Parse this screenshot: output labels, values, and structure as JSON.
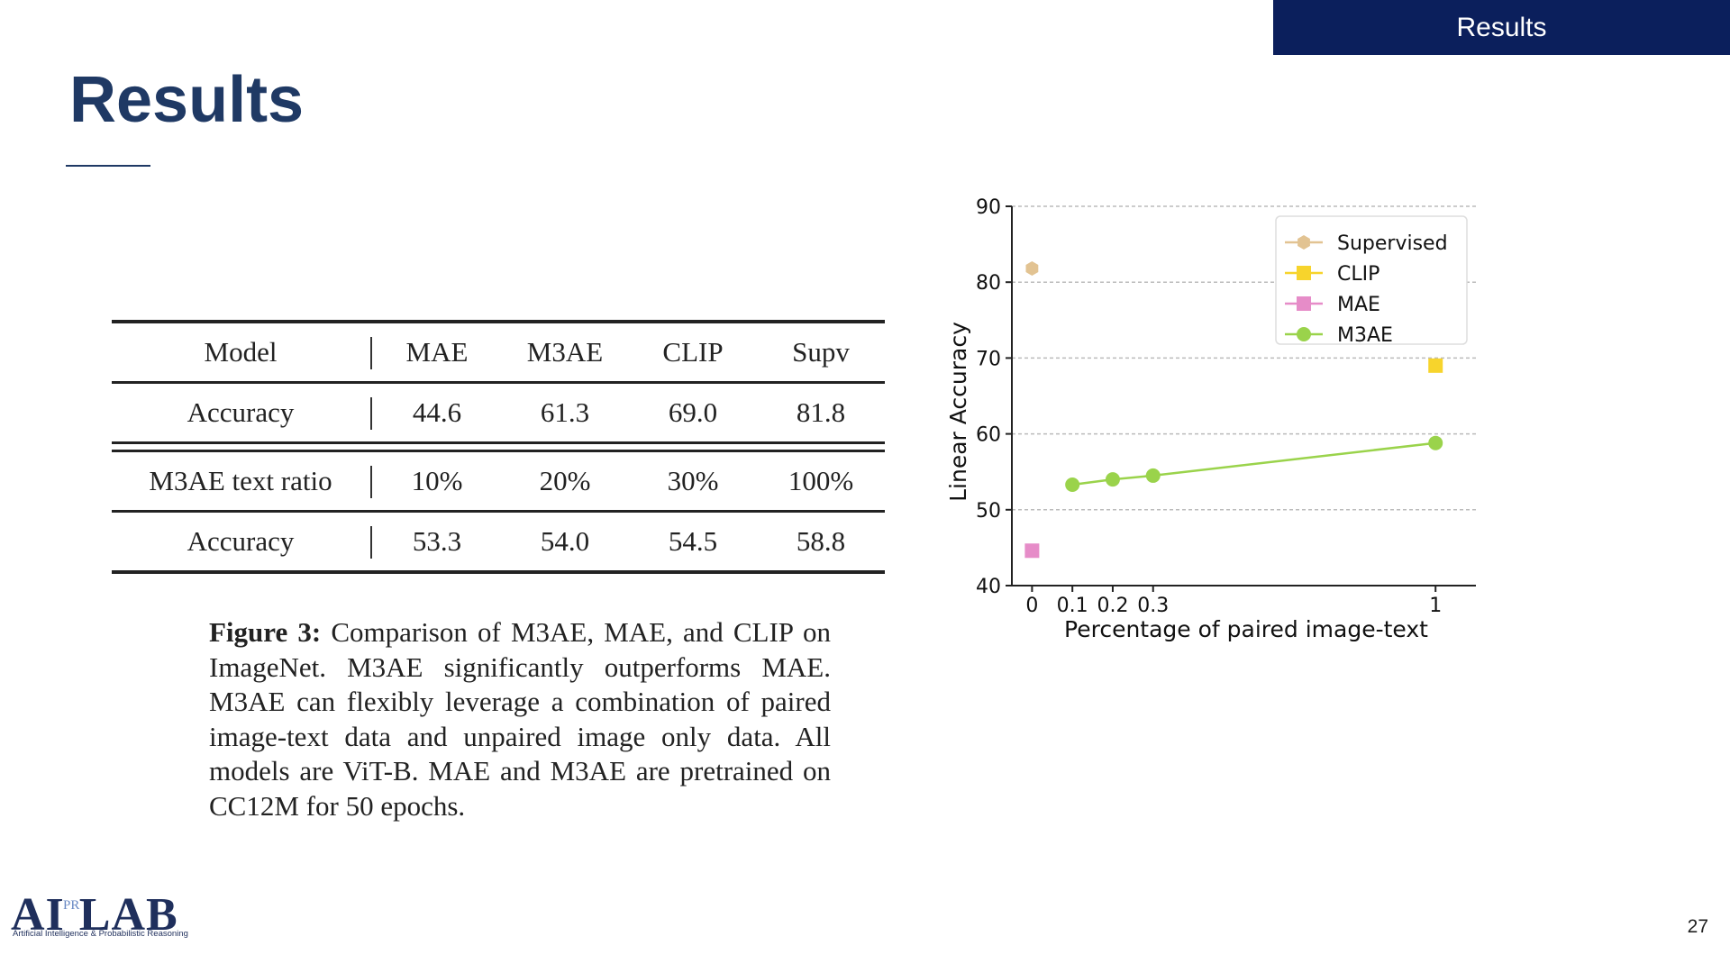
{
  "header": {
    "section_tag": "Results",
    "title": "Results"
  },
  "table": {
    "rows": [
      {
        "label": "Model",
        "cells": [
          "MAE",
          "M3AE",
          "CLIP",
          "Supv"
        ]
      },
      {
        "label": "Accuracy",
        "cells": [
          "44.6",
          "61.3",
          "69.0",
          "81.8"
        ]
      },
      {
        "label": "M3AE text ratio",
        "cells": [
          "10%",
          "20%",
          "30%",
          "100%"
        ]
      },
      {
        "label": "Accuracy",
        "cells": [
          "53.3",
          "54.0",
          "54.5",
          "58.8"
        ]
      }
    ]
  },
  "caption": {
    "lead": "Figure 3:",
    "text": " Comparison of M3AE, MAE, and CLIP on ImageNet.  M3AE significantly outperforms MAE. M3AE can flexibly leverage a combination of paired image-text data and unpaired image only data. All models are ViT-B. MAE and M3AE are pretrained on CC12M for 50 epochs."
  },
  "chart_data": {
    "type": "scatter",
    "title": "",
    "xlabel": "Percentage of paired image-text",
    "ylabel": "Linear Accuracy",
    "xlim": [
      -0.05,
      1.1
    ],
    "ylim": [
      40,
      90
    ],
    "xticks": [
      0,
      0.1,
      0.2,
      0.3,
      1
    ],
    "xtick_labels": [
      "0",
      "0.1",
      "0.2",
      "0.3",
      "1"
    ],
    "yticks": [
      40,
      50,
      60,
      70,
      80,
      90
    ],
    "grid": "horizontal-dashed",
    "legend_position": "top-right",
    "series": [
      {
        "name": "Supervised",
        "marker": "hexagon",
        "color": "#e2c392",
        "line": false,
        "x": [
          0
        ],
        "y": [
          81.8
        ]
      },
      {
        "name": "CLIP",
        "marker": "square",
        "color": "#f7d42c",
        "line": false,
        "x": [
          1
        ],
        "y": [
          69.0
        ]
      },
      {
        "name": "MAE",
        "marker": "square",
        "color": "#e68cc8",
        "line": false,
        "x": [
          0
        ],
        "y": [
          44.6
        ]
      },
      {
        "name": "M3AE",
        "marker": "circle",
        "color": "#9ad34b",
        "line": true,
        "x": [
          0.1,
          0.2,
          0.3,
          1
        ],
        "y": [
          53.3,
          54.0,
          54.5,
          58.8
        ]
      }
    ]
  },
  "footer": {
    "logo_main_left": "AI",
    "logo_mid": "PR",
    "logo_main_right": "LAB",
    "logo_tagline": "Artificial Intelligence & Probabilistic Reasoning",
    "page_number": "27"
  }
}
